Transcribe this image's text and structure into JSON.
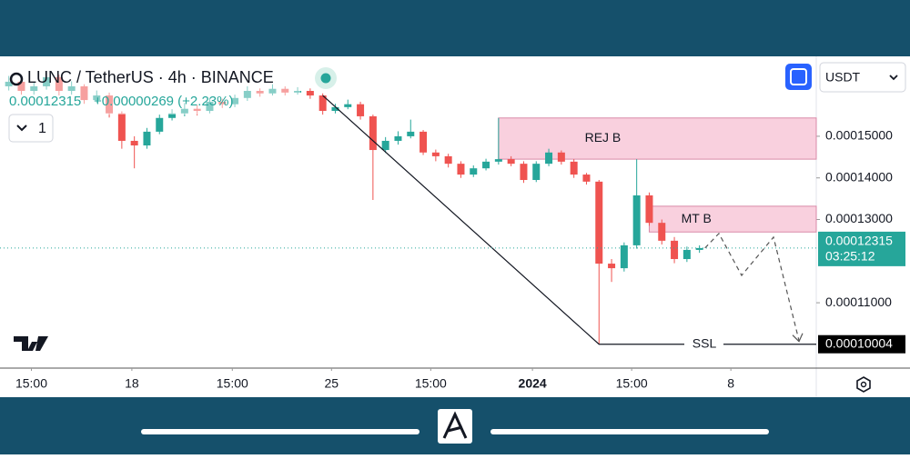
{
  "chart_data": {
    "type": "candlestick",
    "title": "LUNC / TetherUS · 4h · BINANCE",
    "price_text": "0.00012315",
    "change_text": "+0.00000269 (+2.23%)",
    "interval_button": "1",
    "currency": "USDT",
    "last_price_label": "0.00012315",
    "countdown": "03:25:12",
    "ssl_price_label": "0.00010004",
    "up_color": "#26a69a",
    "down_color": "#ef5350",
    "xlim": [
      -0.7,
      64.3
    ],
    "xticks": [
      {
        "value": 1.8,
        "label": "15:00"
      },
      {
        "value": 9.8,
        "label": "18"
      },
      {
        "value": 17.8,
        "label": "15:00"
      },
      {
        "value": 25.7,
        "label": "25"
      },
      {
        "value": 33.6,
        "label": "15:00"
      },
      {
        "value": 41.7,
        "label": "2024"
      },
      {
        "value": 49.6,
        "label": "15:00"
      },
      {
        "value": 57.5,
        "label": "8"
      }
    ],
    "ylim": [
      9.43e-05,
      0.0001692
    ],
    "yticks": [
      {
        "value": 0.00015,
        "label": "0.00015000"
      },
      {
        "value": 0.00014,
        "label": "0.00014000"
      },
      {
        "value": 0.00013,
        "label": "0.00013000"
      },
      {
        "value": 0.00011,
        "label": "0.00011000"
      }
    ],
    "candles": {
      "open": [
        0.000162,
        0.0001631,
        0.0001609,
        0.000162,
        0.0001642,
        0.0001609,
        0.000162,
        0.0001587,
        0.0001598,
        0.0001555,
        0.0001489,
        0.0001478,
        0.0001511,
        0.0001544,
        0.0001555,
        0.0001566,
        0.0001561,
        0.0001583,
        0.0001577,
        0.0001592,
        0.0001609,
        0.0001603,
        0.0001614,
        0.0001605,
        0.0001609,
        0.0001598,
        0.0001561,
        0.000157,
        0.0001577,
        0.0001548,
        0.0001467,
        0.0001489,
        0.00015,
        0.0001511,
        0.0001461,
        0.0001452,
        0.0001434,
        0.0001408,
        0.0001423,
        0.0001439,
        0.0001445,
        0.0001434,
        0.0001395,
        0.0001434,
        0.0001461,
        0.0001439,
        0.0001408,
        0.0001391,
        0.0001194,
        0.0001183,
        0.0001238,
        0.0001358,
        0.0001292,
        0.0001249,
        0.0001205,
        0.0001227
      ],
      "high": [
        0.0001645,
        0.000164,
        0.000163,
        0.0001655,
        0.0001648,
        0.0001632,
        0.0001625,
        0.000161,
        0.0001605,
        0.000156,
        0.00015,
        0.000152,
        0.0001552,
        0.0001565,
        0.000158,
        0.0001575,
        0.0001592,
        0.000159,
        0.00016,
        0.000162,
        0.0001615,
        0.0001625,
        0.000162,
        0.0001618,
        0.0001615,
        0.0001603,
        0.0001578,
        0.0001588,
        0.0001583,
        0.0001552,
        0.0001498,
        0.0001512,
        0.000154,
        0.0001515,
        0.0001468,
        0.0001458,
        0.000144,
        0.000143,
        0.0001446,
        0.0001544,
        0.0001452,
        0.000144,
        0.000144,
        0.000147,
        0.0001466,
        0.0001445,
        0.0001412,
        0.0001395,
        0.0001205,
        0.0001245,
        0.0001445,
        0.0001365,
        0.00013,
        0.0001258,
        0.0001235,
        0.0001238
      ],
      "low": [
        0.000161,
        0.00016,
        0.00016,
        0.0001612,
        0.0001598,
        0.00016,
        0.0001578,
        0.000158,
        0.0001545,
        0.000147,
        0.0001423,
        0.000147,
        0.0001505,
        0.0001538,
        0.0001548,
        0.000155,
        0.0001555,
        0.0001568,
        0.000157,
        0.0001585,
        0.0001595,
        0.0001598,
        0.0001598,
        0.00016,
        0.000159,
        0.0001552,
        0.0001555,
        0.0001565,
        0.000154,
        0.0001347,
        0.000146,
        0.000148,
        0.0001495,
        0.0001455,
        0.000144,
        0.0001425,
        0.00014,
        0.0001402,
        0.0001418,
        0.0001432,
        0.0001428,
        0.0001388,
        0.000139,
        0.0001428,
        0.0001432,
        0.00014,
        0.0001384,
        0.00010004,
        0.000115,
        0.0001175,
        0.000123,
        0.0001285,
        0.000124,
        0.0001195,
        0.0001198,
        0.000122
      ],
      "close": [
        0.0001631,
        0.0001609,
        0.000162,
        0.0001642,
        0.0001609,
        0.000162,
        0.0001587,
        0.0001598,
        0.0001555,
        0.0001489,
        0.0001478,
        0.0001511,
        0.0001544,
        0.0001555,
        0.0001566,
        0.0001561,
        0.0001583,
        0.0001577,
        0.0001592,
        0.0001609,
        0.0001603,
        0.0001614,
        0.0001605,
        0.0001609,
        0.0001598,
        0.0001561,
        0.000157,
        0.0001577,
        0.0001548,
        0.0001467,
        0.0001489,
        0.00015,
        0.0001511,
        0.0001461,
        0.0001452,
        0.0001434,
        0.0001408,
        0.0001423,
        0.0001439,
        0.0001445,
        0.0001434,
        0.0001395,
        0.0001434,
        0.0001461,
        0.0001439,
        0.0001408,
        0.0001391,
        0.0001194,
        0.0001183,
        0.0001238,
        0.0001358,
        0.0001292,
        0.0001249,
        0.0001205,
        0.0001227,
        0.00012315
      ]
    },
    "zones": [
      {
        "label": "REJ B",
        "start_index": 39,
        "top": 0.0001544,
        "bottom": 0.0001445
      },
      {
        "label": "MT B",
        "start_index": 51,
        "top": 0.0001332,
        "bottom": 0.000127
      }
    ],
    "ssl_label": "SSL"
  }
}
